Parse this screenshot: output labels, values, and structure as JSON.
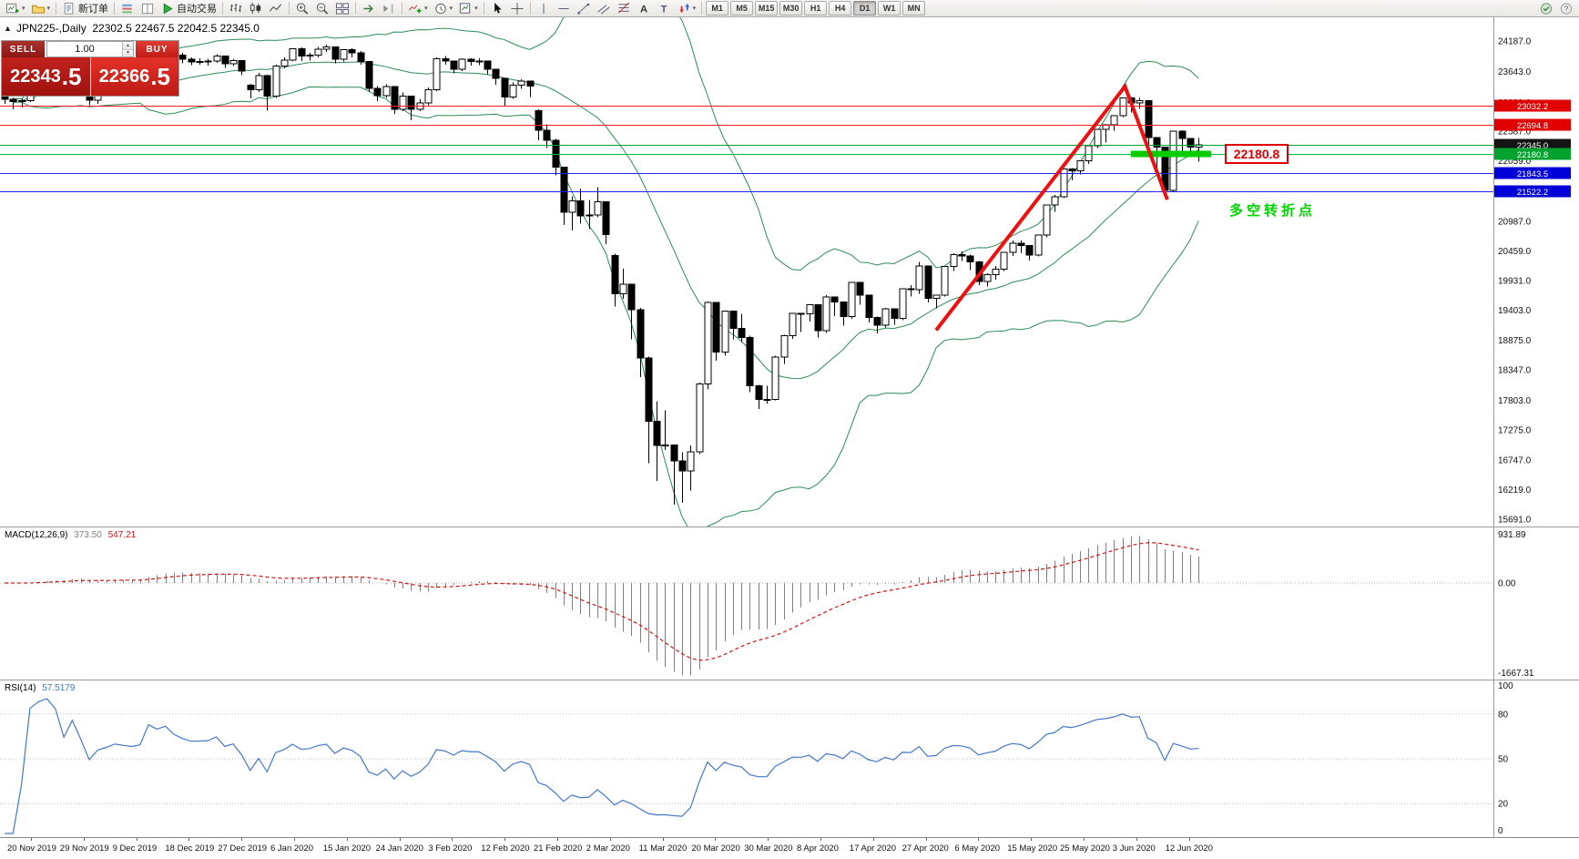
{
  "toolbar": {
    "new_order": "新订单",
    "autotrading": "自动交易",
    "timeframes": [
      "M1",
      "M5",
      "M15",
      "M30",
      "H1",
      "H4",
      "D1",
      "W1",
      "MN"
    ],
    "active_timeframe": "D1"
  },
  "chart_header": {
    "symbol_period": "JPN225-,Daily",
    "ohlc": "22302.5 22467.5 22042.5 22345.0",
    "collapse_glyph": "▲"
  },
  "trade_panel": {
    "sell_label": "SELL",
    "buy_label": "BUY",
    "volume": "1.00",
    "sell_main": "22343",
    "sell_frac": ".5",
    "buy_main": "22366",
    "buy_frac": ".5"
  },
  "chart_data": {
    "type": "candlestick",
    "symbol": "JPN225-",
    "period": "Daily",
    "last_ohlc": {
      "open": 22302.5,
      "high": 22467.5,
      "low": 22042.5,
      "close": 22345.0
    },
    "price_axis": {
      "view_max": 24608,
      "view_min": 15563,
      "labels": [
        "24187.0",
        "23643.0",
        "23099.0",
        "22587.0",
        "22059.0",
        "20987.0",
        "20459.0",
        "19931.0",
        "19403.0",
        "18875.0",
        "18347.0",
        "17803.0",
        "17275.0",
        "16747.0",
        "16219.0",
        "15691.0"
      ]
    },
    "x_labels": [
      "20 Nov 2019",
      "29 Nov 2019",
      "9 Dec 2019",
      "18 Dec 2019",
      "27 Dec 2019",
      "6 Jan 2020",
      "15 Jan 2020",
      "24 Jan 2020",
      "3 Feb 2020",
      "12 Feb 2020",
      "21 Feb 2020",
      "2 Mar 2020",
      "11 Mar 2020",
      "20 Mar 2020",
      "30 Mar 2020",
      "8 Apr 2020",
      "17 Apr 2020",
      "27 Apr 2020",
      "6 May 2020",
      "15 May 2020",
      "25 May 2020",
      "3 Jun 2020",
      "12 Jun 2020"
    ],
    "candles": [
      [
        23290,
        23330,
        23070,
        23148
      ],
      [
        23148,
        23180,
        22970,
        23113
      ],
      [
        23113,
        23160,
        23010,
        23130
      ],
      [
        23130,
        23310,
        23100,
        23293
      ],
      [
        23293,
        23400,
        23250,
        23373
      ],
      [
        23373,
        23460,
        23320,
        23438
      ],
      [
        23438,
        23450,
        23310,
        23409
      ],
      [
        23409,
        23420,
        23210,
        23294
      ],
      [
        23294,
        23560,
        23270,
        23529
      ],
      [
        23529,
        23560,
        23330,
        23380
      ],
      [
        23380,
        23390,
        23050,
        23135
      ],
      [
        23135,
        23330,
        23070,
        23300
      ],
      [
        23300,
        23390,
        23200,
        23354
      ],
      [
        23354,
        23440,
        23290,
        23430
      ],
      [
        23430,
        23460,
        23330,
        23410
      ],
      [
        23410,
        23450,
        23290,
        23391
      ],
      [
        23391,
        23480,
        23360,
        23424
      ],
      [
        23424,
        24050,
        23400,
        24023
      ],
      [
        24023,
        24060,
        23820,
        23952
      ],
      [
        23952,
        24091,
        23900,
        24066
      ],
      [
        24066,
        24080,
        23880,
        23934
      ],
      [
        23934,
        23980,
        23790,
        23864
      ],
      [
        23864,
        23900,
        23760,
        23817
      ],
      [
        23817,
        23880,
        23770,
        23821
      ],
      [
        23821,
        23870,
        23750,
        23830
      ],
      [
        23830,
        23950,
        23800,
        23924
      ],
      [
        23924,
        23930,
        23710,
        23782
      ],
      [
        23782,
        23870,
        23740,
        23837
      ],
      [
        23837,
        23850,
        23580,
        23656
      ],
      [
        23400,
        23430,
        23170,
        23320
      ],
      [
        23320,
        23620,
        23280,
        23575
      ],
      [
        23575,
        23590,
        22950,
        23205
      ],
      [
        23205,
        23770,
        23180,
        23740
      ],
      [
        23740,
        23900,
        23700,
        23850
      ],
      [
        23850,
        24060,
        23830,
        24050
      ],
      [
        24050,
        24070,
        23830,
        23917
      ],
      [
        23917,
        23980,
        23840,
        23933
      ],
      [
        23933,
        24080,
        23900,
        24041
      ],
      [
        24041,
        24120,
        23990,
        24083
      ],
      [
        24083,
        24090,
        23790,
        23864
      ],
      [
        23864,
        24040,
        23820,
        24031
      ],
      [
        24031,
        24060,
        23900,
        23977
      ],
      [
        23977,
        24010,
        23770,
        23827
      ],
      [
        23827,
        23830,
        23280,
        23344
      ],
      [
        23344,
        23390,
        23120,
        23216
      ],
      [
        23216,
        23420,
        23180,
        23379
      ],
      [
        23379,
        23380,
        22890,
        22977
      ],
      [
        22977,
        23270,
        22940,
        23205
      ],
      [
        23205,
        23210,
        22780,
        22972
      ],
      [
        22972,
        23150,
        22940,
        23084
      ],
      [
        23084,
        23360,
        23050,
        23320
      ],
      [
        23320,
        23900,
        23300,
        23873
      ],
      [
        23873,
        23920,
        23770,
        23828
      ],
      [
        23828,
        23840,
        23610,
        23686
      ],
      [
        23686,
        23880,
        23650,
        23861
      ],
      [
        23861,
        23880,
        23750,
        23827
      ],
      [
        23827,
        23880,
        23760,
        23828
      ],
      [
        23828,
        23840,
        23600,
        23687
      ],
      [
        23687,
        23690,
        23410,
        23523
      ],
      [
        23523,
        23530,
        23040,
        23193
      ],
      [
        23193,
        23450,
        23160,
        23401
      ],
      [
        23401,
        23510,
        23340,
        23479
      ],
      [
        23479,
        23480,
        23190,
        23386
      ],
      [
        22950,
        22970,
        22420,
        22605
      ],
      [
        22605,
        22710,
        22290,
        22426
      ],
      [
        22426,
        22450,
        21800,
        21948
      ],
      [
        21948,
        21950,
        20920,
        21143
      ],
      [
        21143,
        21430,
        20820,
        21344
      ],
      [
        21344,
        21570,
        20940,
        21083
      ],
      [
        21083,
        21360,
        20850,
        21100
      ],
      [
        21100,
        21590,
        21060,
        21329
      ],
      [
        21329,
        21330,
        20580,
        20750
      ],
      [
        20380,
        20410,
        19470,
        19699
      ],
      [
        19699,
        20140,
        19610,
        19867
      ],
      [
        19867,
        19870,
        18890,
        19416
      ],
      [
        19416,
        19450,
        18220,
        18560
      ],
      [
        18560,
        18580,
        16690,
        17431
      ],
      [
        17431,
        17790,
        16370,
        17002
      ],
      [
        17002,
        17630,
        16920,
        17012
      ],
      [
        17012,
        17020,
        15950,
        16727
      ],
      [
        16727,
        16880,
        15980,
        16553
      ],
      [
        16553,
        17000,
        16200,
        16888
      ],
      [
        16888,
        18120,
        16850,
        18092
      ],
      [
        18092,
        19560,
        18000,
        19547
      ],
      [
        19547,
        19550,
        18510,
        18665
      ],
      [
        18665,
        19400,
        18600,
        19389
      ],
      [
        19389,
        19390,
        18890,
        19085
      ],
      [
        19085,
        19340,
        18840,
        18917
      ],
      [
        18917,
        18950,
        17950,
        18065
      ],
      [
        18065,
        18080,
        17650,
        17818
      ],
      [
        17818,
        18060,
        17750,
        17820
      ],
      [
        17820,
        18600,
        17800,
        18576
      ],
      [
        18576,
        18970,
        18450,
        18950
      ],
      [
        18950,
        19360,
        18900,
        19353
      ],
      [
        19353,
        19360,
        19020,
        19345
      ],
      [
        19345,
        19510,
        19200,
        19499
      ],
      [
        19499,
        19500,
        18920,
        19043
      ],
      [
        19043,
        19670,
        19000,
        19638
      ],
      [
        19638,
        19640,
        19300,
        19550
      ],
      [
        19550,
        19560,
        19130,
        19290
      ],
      [
        19290,
        19910,
        19250,
        19897
      ],
      [
        19897,
        19900,
        19500,
        19669
      ],
      [
        19669,
        19670,
        19190,
        19280
      ],
      [
        19280,
        19290,
        18990,
        19138
      ],
      [
        19138,
        19450,
        19100,
        19429
      ],
      [
        19429,
        19430,
        19150,
        19262
      ],
      [
        19262,
        19790,
        19230,
        19783
      ],
      [
        19783,
        19850,
        19650,
        19771
      ],
      [
        19771,
        20260,
        19700,
        20193
      ],
      [
        20193,
        20200,
        19540,
        19619
      ],
      [
        19619,
        19680,
        19440,
        19674
      ],
      [
        19674,
        20190,
        19650,
        20179
      ],
      [
        20179,
        20420,
        20100,
        20390
      ],
      [
        20390,
        20450,
        20280,
        20366
      ],
      [
        20366,
        20390,
        20120,
        20267
      ],
      [
        20267,
        20280,
        19850,
        19914
      ],
      [
        19914,
        20060,
        19830,
        20037
      ],
      [
        20037,
        20190,
        19950,
        20133
      ],
      [
        20133,
        20440,
        20100,
        20433
      ],
      [
        20433,
        20640,
        20370,
        20595
      ],
      [
        20595,
        20640,
        20420,
        20552
      ],
      [
        20552,
        20560,
        20290,
        20388
      ],
      [
        20388,
        20750,
        20360,
        20741
      ],
      [
        20741,
        21280,
        20700,
        21271
      ],
      [
        21271,
        21450,
        21150,
        21419
      ],
      [
        21419,
        21920,
        21400,
        21916
      ],
      [
        21916,
        21930,
        21710,
        21878
      ],
      [
        21878,
        22070,
        21820,
        22062
      ],
      [
        22062,
        22330,
        22000,
        22326
      ],
      [
        22326,
        22620,
        22290,
        22614
      ],
      [
        22614,
        22700,
        22380,
        22696
      ],
      [
        22696,
        22870,
        22590,
        22864
      ],
      [
        22864,
        23180,
        22840,
        23178
      ],
      [
        23178,
        23190,
        22920,
        23091
      ],
      [
        23091,
        23180,
        22980,
        23125
      ],
      [
        23125,
        23130,
        22310,
        22472
      ],
      [
        22472,
        22480,
        21940,
        22305
      ],
      [
        22305,
        22310,
        21480,
        21531
      ],
      [
        21531,
        22590,
        21510,
        22582
      ],
      [
        22582,
        22600,
        22210,
        22456
      ],
      [
        22456,
        22460,
        22150,
        22303
      ],
      [
        22302.5,
        22467.5,
        22042.5,
        22345.0
      ]
    ],
    "bollinger": {
      "period": 20,
      "deviation": 2,
      "color": "#2e8b57"
    },
    "levels": [
      {
        "price": 23032.2,
        "label": "23032.2",
        "line": "#ff1a1a",
        "badge": "#e00000"
      },
      {
        "price": 22694.8,
        "label": "22694.8",
        "line": "#ff1a1a",
        "badge": "#e00000"
      },
      {
        "price": 22345.0,
        "label": "22345.0",
        "line": "#00a32e",
        "badge": "#141414"
      },
      {
        "price": 22180.8,
        "label": "22180.8",
        "line": "#00c040",
        "badge": "#00a32e"
      },
      {
        "price": 21843.5,
        "label": "21843.5",
        "line": "#2222ff",
        "badge": "#0000d8"
      },
      {
        "price": 21522.2,
        "label": "21522.2",
        "line": "#2222ff",
        "badge": "#0000d8"
      }
    ],
    "annotations": {
      "zigzag": {
        "color": "#ee1111",
        "width": 4,
        "points": [
          [
            110,
            19050
          ],
          [
            132.3,
            23380
          ],
          [
            137.3,
            21370
          ]
        ]
      },
      "support_segment": {
        "color": "#00cc00",
        "price": 22180.8,
        "bar_from": 133,
        "bar_to": 142.5,
        "width": 7
      },
      "price_tag": {
        "text": "22180.8",
        "color": "#e00000"
      },
      "note": {
        "text": "多空转折点",
        "color": "#00d400"
      }
    },
    "macd": {
      "name": "MACD(12,26,9)",
      "main_value": "373.50",
      "signal_value": "547.21",
      "axis_max": "931.89",
      "axis_zero": "0.00",
      "axis_min": "-1667.31",
      "bounds_max": 931.89,
      "bounds_min": -1667.31,
      "hist_color": "#7f7f7f",
      "signal_color": "#d01515"
    },
    "rsi": {
      "name": "RSI(14)",
      "value": "57.5179",
      "color": "#4577c8",
      "axis_labels": [
        "100",
        "80",
        "50",
        "20",
        "0"
      ],
      "level_lines": [
        80,
        50,
        20
      ]
    }
  }
}
